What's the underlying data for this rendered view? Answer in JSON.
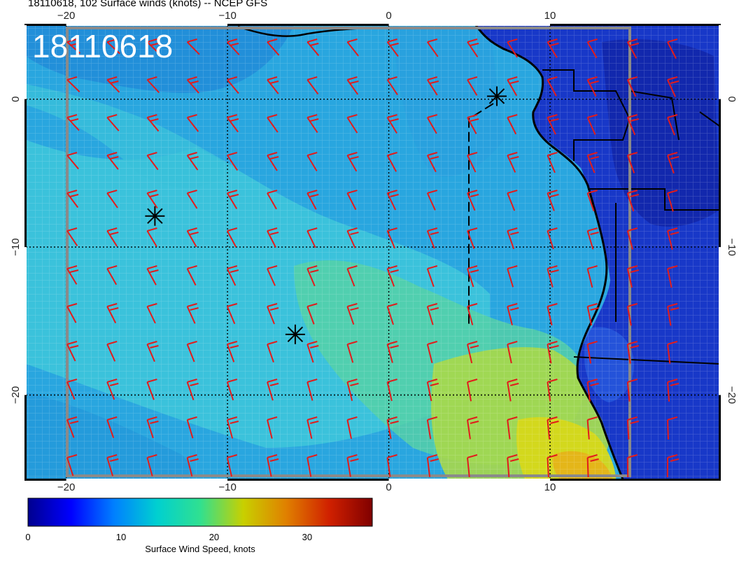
{
  "header": {
    "title": "18110618, 102 Surface winds (knots) -- NCEP GFS",
    "stamp": "18110618"
  },
  "map": {
    "lon_ticks": [
      {
        "value": -20,
        "label": "−20"
      },
      {
        "value": -10,
        "label": "−10"
      },
      {
        "value": 0,
        "label": "0"
      },
      {
        "value": 10,
        "label": "10"
      }
    ],
    "lat_ticks": [
      {
        "value": 0,
        "label": "0"
      },
      {
        "value": -10,
        "label": "−10"
      },
      {
        "value": -20,
        "label": "−20"
      }
    ],
    "lon_range": [
      -22.5,
      20.5
    ],
    "lat_range": [
      -25.7,
      5.0
    ],
    "markers": [
      {
        "name": "marker-1",
        "lon": -14.5,
        "lat": -7.9
      },
      {
        "name": "marker-2",
        "lon": -5.8,
        "lat": -15.9
      },
      {
        "name": "marker-3",
        "lon": 6.7,
        "lat": 0.2
      }
    ],
    "barb_color": "#e21b1b",
    "coast_color": "#000000",
    "domain_box_color": "#8a8a8a"
  },
  "colorbar": {
    "title": "Surface Wind Speed, knots",
    "ticks": [
      {
        "value": 0,
        "label": "0"
      },
      {
        "value": 10,
        "label": "10"
      },
      {
        "value": 20,
        "label": "20"
      },
      {
        "value": 30,
        "label": "30"
      }
    ],
    "max": 37,
    "stops": [
      "#00008f",
      "#0000ff",
      "#0080ff",
      "#00d0d0",
      "#30e090",
      "#c8d000",
      "#e08000",
      "#d02000",
      "#800000"
    ]
  }
}
